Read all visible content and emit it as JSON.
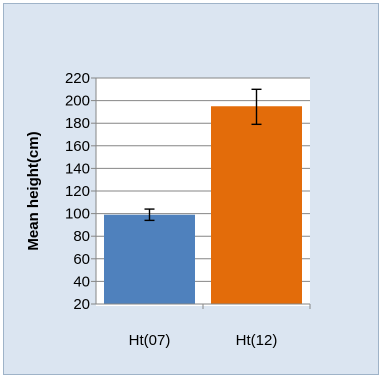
{
  "chart_data": {
    "type": "bar",
    "categories": [
      "Ht(07)",
      "Ht(12)"
    ],
    "values": [
      99,
      195
    ],
    "error_bars": [
      {
        "low": 94,
        "high": 104
      },
      {
        "low": 179,
        "high": 210
      }
    ],
    "colors": [
      "#4f81bd",
      "#e36c0a"
    ],
    "xlabel": "",
    "ylabel": "Mean height(cm)",
    "ylim": [
      20,
      220
    ],
    "yticks": [
      20,
      40,
      60,
      80,
      100,
      120,
      140,
      160,
      180,
      200,
      220
    ],
    "grid": true,
    "legend": "none"
  }
}
